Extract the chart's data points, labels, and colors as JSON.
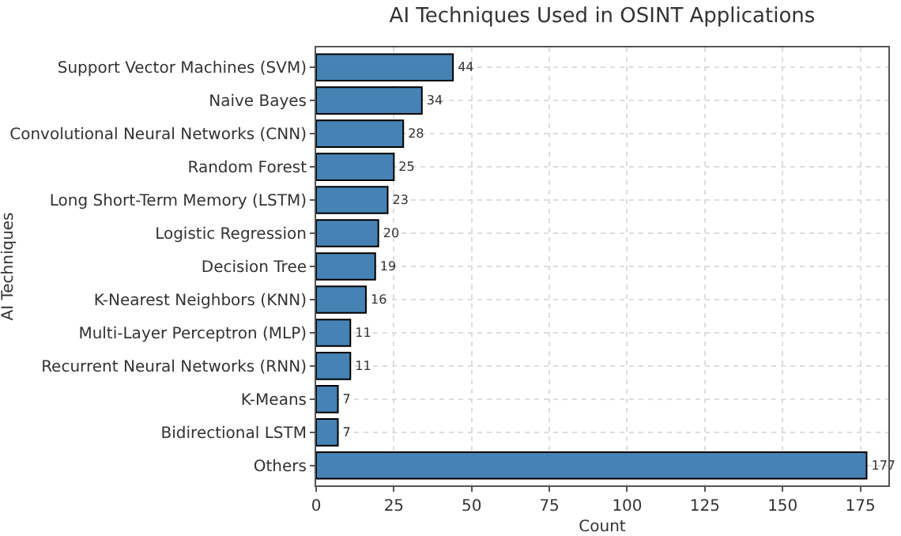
{
  "chart_data": {
    "type": "bar",
    "orientation": "horizontal",
    "title": "AI Techniques Used in OSINT Applications",
    "xlabel": "Count",
    "ylabel": "AI Techniques",
    "categories": [
      "Support Vector Machines (SVM)",
      "Naive Bayes",
      "Convolutional Neural Networks (CNN)",
      "Random Forest",
      "Long Short-Term Memory (LSTM)",
      "Logistic Regression",
      "Decision Tree",
      "K-Nearest Neighbors (KNN)",
      "Multi-Layer Perceptron (MLP)",
      "Recurrent Neural Networks (RNN)",
      "K-Means",
      "Bidirectional LSTM",
      "Others"
    ],
    "values": [
      44,
      34,
      28,
      25,
      23,
      20,
      19,
      16,
      11,
      11,
      7,
      7,
      177
    ],
    "color": "#4682b4",
    "xlim": [
      0,
      184
    ],
    "xticks": [
      0,
      25,
      50,
      75,
      100,
      125,
      150,
      175
    ],
    "grid": true,
    "data_labels": true,
    "legend": false
  }
}
